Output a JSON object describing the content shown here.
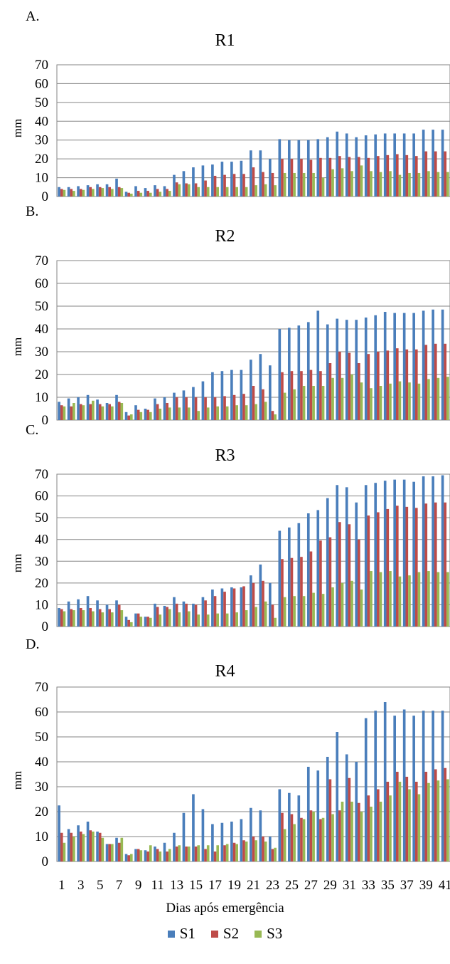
{
  "figure": {
    "xlabel": "Dias após emergência",
    "legend": [
      {
        "name": "S1",
        "color": "#4a7ebb"
      },
      {
        "name": "S2",
        "color": "#be4b48"
      },
      {
        "name": "S3",
        "color": "#98b954"
      }
    ]
  },
  "chart_data": [
    {
      "type": "bar",
      "panel_label": "A.",
      "title": "R1",
      "ylabel": "mm",
      "xlabel": "",
      "ylim": [
        0,
        70
      ],
      "yticks": [
        0,
        10,
        20,
        30,
        40,
        50,
        60,
        70
      ],
      "grid": true,
      "categories": [
        "1",
        "2",
        "3",
        "4",
        "5",
        "6",
        "7",
        "8",
        "9",
        "10",
        "11",
        "12",
        "13",
        "14",
        "15",
        "16",
        "17",
        "18",
        "19",
        "20",
        "21",
        "22",
        "23",
        "24",
        "25",
        "26",
        "27",
        "28",
        "29",
        "30",
        "31",
        "32",
        "33",
        "34",
        "35",
        "36",
        "37",
        "38",
        "39",
        "40",
        "41"
      ],
      "series": [
        {
          "name": "S1",
          "values": [
            5,
            5,
            5.5,
            6,
            6.5,
            6.5,
            9.5,
            2.5,
            5.5,
            4.5,
            6,
            5.5,
            11.5,
            13.5,
            15.5,
            16.5,
            17,
            18.5,
            18.5,
            19,
            24.5,
            24.5,
            20,
            30.5,
            30,
            30,
            30,
            30.5,
            31.5,
            34.5,
            33.5,
            31.5,
            32.5,
            33,
            33.5,
            33.5,
            33.5,
            33.5,
            35.5,
            35.5,
            35.5
          ]
        },
        {
          "name": "S2",
          "values": [
            4,
            4,
            4,
            5,
            5,
            5,
            5,
            2,
            3,
            3,
            4,
            4,
            7.5,
            7,
            7,
            8.5,
            11,
            11.5,
            12,
            12,
            15.5,
            13,
            12.5,
            20,
            20,
            20,
            19.5,
            20.5,
            20.5,
            21.5,
            21,
            21,
            20.5,
            21.5,
            22,
            22.5,
            22,
            21.5,
            24,
            24,
            24
          ]
        },
        {
          "name": "S3",
          "values": [
            3.5,
            3,
            3.5,
            4,
            4.5,
            4,
            4.5,
            1.5,
            2,
            2,
            2.5,
            3,
            6.5,
            6.5,
            5,
            5,
            5,
            5,
            5,
            5,
            6,
            6.5,
            6,
            12.5,
            12.5,
            12.5,
            12.5,
            10,
            14.5,
            15,
            13.5,
            16.5,
            13.5,
            13,
            13.5,
            11.5,
            12.5,
            12.5,
            13.5,
            13,
            13
          ]
        }
      ]
    },
    {
      "type": "bar",
      "panel_label": "B.",
      "title": "R2",
      "ylabel": "mm",
      "xlabel": "",
      "ylim": [
        0,
        70
      ],
      "yticks": [
        0,
        10,
        20,
        30,
        40,
        50,
        60,
        70
      ],
      "grid": true,
      "categories": [
        "1",
        "2",
        "3",
        "4",
        "5",
        "6",
        "7",
        "8",
        "9",
        "10",
        "11",
        "12",
        "13",
        "14",
        "15",
        "16",
        "17",
        "18",
        "19",
        "20",
        "21",
        "22",
        "23",
        "24",
        "25",
        "26",
        "27",
        "28",
        "29",
        "30",
        "31",
        "32",
        "33",
        "34",
        "35",
        "36",
        "37",
        "38",
        "39",
        "40",
        "41"
      ],
      "series": [
        {
          "name": "S1",
          "values": [
            8,
            9.5,
            10,
            11,
            9,
            7.5,
            11,
            3.5,
            6.5,
            5,
            9.5,
            10,
            12,
            13,
            14.5,
            17,
            21,
            21.5,
            22,
            22,
            26.5,
            29,
            24,
            40,
            40.5,
            41.5,
            43,
            48,
            42,
            44.5,
            44,
            44,
            45,
            46,
            47.5,
            47,
            47,
            47,
            48,
            48.5,
            48.5
          ]
        },
        {
          "name": "S2",
          "values": [
            6.5,
            6,
            7,
            7,
            7,
            7,
            8,
            2,
            4.5,
            4.5,
            7,
            7.5,
            10,
            10,
            10,
            10,
            10,
            10.5,
            11,
            11.5,
            15,
            13.5,
            4,
            21,
            21.5,
            21.5,
            22,
            21.5,
            25,
            30,
            29.5,
            25,
            29,
            30,
            30.5,
            31.5,
            31,
            31,
            33,
            33.5,
            33.5
          ]
        },
        {
          "name": "S3",
          "values": [
            6,
            7.5,
            6.5,
            8.5,
            6,
            6,
            7.5,
            2.5,
            3.5,
            3.5,
            5,
            5.5,
            5.5,
            5.5,
            4,
            5.5,
            6,
            6,
            6.5,
            6.5,
            7,
            8,
            2.5,
            12,
            13.5,
            15,
            15,
            15,
            18.5,
            18.5,
            20,
            16.5,
            14,
            15,
            16,
            17,
            16.5,
            16,
            18,
            18.5,
            19
          ]
        }
      ]
    },
    {
      "type": "bar",
      "panel_label": "C.",
      "title": "R3",
      "ylabel": "mm",
      "xlabel": "",
      "ylim": [
        0,
        70
      ],
      "yticks": [
        0,
        10,
        20,
        30,
        40,
        50,
        60,
        70
      ],
      "grid": true,
      "categories": [
        "1",
        "2",
        "3",
        "4",
        "5",
        "6",
        "7",
        "8",
        "9",
        "10",
        "11",
        "12",
        "13",
        "14",
        "15",
        "16",
        "17",
        "18",
        "19",
        "20",
        "21",
        "22",
        "23",
        "24",
        "25",
        "26",
        "27",
        "28",
        "29",
        "30",
        "31",
        "32",
        "33",
        "34",
        "35",
        "36",
        "37",
        "38",
        "39",
        "40",
        "41"
      ],
      "series": [
        {
          "name": "S1",
          "values": [
            8.5,
            11.5,
            12.5,
            14,
            12,
            10,
            12,
            4.5,
            6,
            4.5,
            10.5,
            9.5,
            13.5,
            11.5,
            10.5,
            13.5,
            17,
            17.5,
            18,
            18,
            23.5,
            28.5,
            20,
            44,
            45.5,
            47.5,
            52,
            53.5,
            59,
            65,
            64,
            57,
            65,
            66,
            67,
            67.5,
            67.5,
            66.5,
            69,
            69,
            69.5
          ]
        },
        {
          "name": "S2",
          "values": [
            8,
            8,
            8.5,
            8.5,
            8,
            8,
            10,
            3,
            6,
            4.5,
            9,
            9,
            10.5,
            10.5,
            10,
            12,
            14,
            16,
            17.5,
            18.5,
            20,
            21,
            10,
            31,
            31.5,
            32,
            34.5,
            39.5,
            41,
            48,
            47,
            40,
            51,
            52.5,
            54,
            55.5,
            55,
            54.5,
            56.5,
            57,
            57
          ]
        },
        {
          "name": "S3",
          "values": [
            7,
            7.5,
            7.5,
            7,
            6.5,
            6.5,
            7.5,
            2,
            4.5,
            4,
            5.5,
            8,
            6.5,
            7,
            5.5,
            5.5,
            6,
            6,
            6.5,
            7.5,
            9,
            11.5,
            4,
            13.5,
            14,
            14,
            15.5,
            15,
            18,
            20,
            21,
            17,
            25.5,
            25,
            25.5,
            23,
            23.5,
            25,
            25.5,
            25,
            25
          ]
        }
      ]
    },
    {
      "type": "bar",
      "panel_label": "D.",
      "title": "R4",
      "ylabel": "mm",
      "xlabel": "Dias após emergência",
      "ylim": [
        0,
        70
      ],
      "yticks": [
        0,
        10,
        20,
        30,
        40,
        50,
        60,
        70
      ],
      "grid": true,
      "categories": [
        "1",
        "2",
        "3",
        "4",
        "5",
        "6",
        "7",
        "8",
        "9",
        "10",
        "11",
        "12",
        "13",
        "14",
        "15",
        "16",
        "17",
        "18",
        "19",
        "20",
        "21",
        "22",
        "23",
        "24",
        "25",
        "26",
        "27",
        "28",
        "29",
        "30",
        "31",
        "32",
        "33",
        "34",
        "35",
        "36",
        "37",
        "38",
        "39",
        "40",
        "41"
      ],
      "tick_labels": [
        "1",
        "3",
        "5",
        "7",
        "9",
        "11",
        "13",
        "15",
        "17",
        "19",
        "21",
        "23",
        "25",
        "27",
        "29",
        "31",
        "33",
        "35",
        "37",
        "39",
        "41"
      ],
      "series": [
        {
          "name": "S1",
          "values": [
            22.5,
            13,
            14.5,
            16,
            12,
            7,
            9.5,
            3,
            5,
            4.5,
            6,
            7.5,
            11.5,
            19.5,
            27,
            21,
            15,
            15.5,
            16,
            17,
            21.5,
            20.5,
            10,
            29,
            27.5,
            26.5,
            38,
            36.5,
            42,
            52,
            43,
            40,
            57.5,
            60.5,
            64,
            58.5,
            61,
            58.5,
            60.5,
            60.5,
            60.5
          ]
        },
        {
          "name": "S2",
          "values": [
            11.5,
            11.5,
            12,
            12.5,
            11.5,
            7,
            7.5,
            2.5,
            5,
            4,
            5,
            4,
            6,
            6,
            6,
            5,
            4,
            6.5,
            7.5,
            8.5,
            10,
            10,
            5,
            19.5,
            19,
            17.5,
            20.5,
            17,
            33,
            20.5,
            33.5,
            23.5,
            26.5,
            29,
            32,
            36,
            34,
            32,
            36,
            37,
            37.5
          ]
        },
        {
          "name": "S3",
          "values": [
            7.5,
            10,
            11,
            12,
            9.5,
            7,
            9.5,
            3,
            4.5,
            6.5,
            4,
            5,
            6.5,
            6,
            6.5,
            6.5,
            6.5,
            7,
            7,
            8,
            8.5,
            8,
            5.5,
            13,
            15,
            17,
            20,
            17.5,
            19,
            24,
            24,
            20,
            22,
            24,
            26.5,
            32,
            29,
            27,
            31.5,
            32.5,
            33
          ]
        }
      ]
    }
  ]
}
